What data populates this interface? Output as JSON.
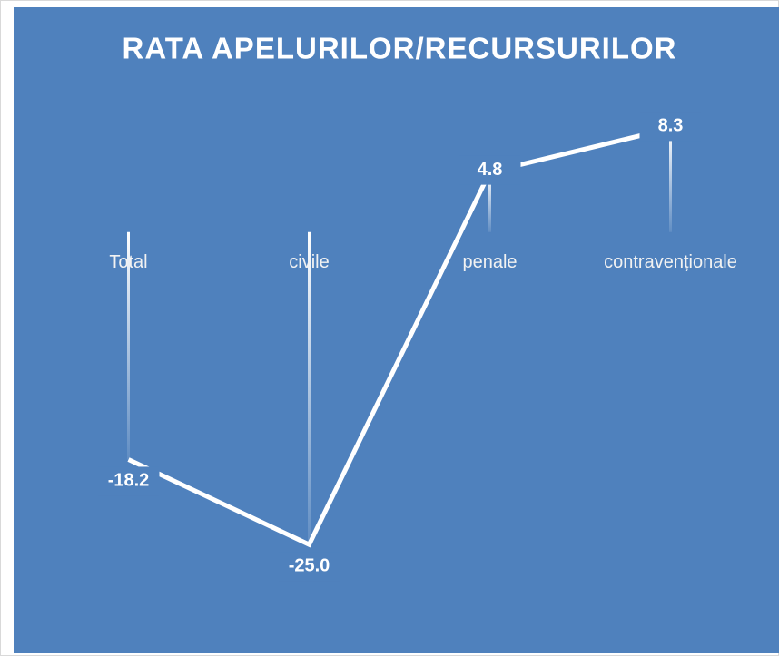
{
  "chart_data": {
    "type": "line",
    "title": "RATA APELURILOR/RECURSURILOR",
    "categories": [
      "Total",
      "civile",
      "penale",
      "contravenționale"
    ],
    "values": [
      -18.2,
      -25.0,
      4.8,
      8.3
    ],
    "value_labels": [
      "-18.2",
      "-25.0",
      "4.8",
      "8.3"
    ],
    "color": "#ffffff",
    "background": "#4f81bd",
    "ylim": [
      -30,
      10
    ]
  }
}
